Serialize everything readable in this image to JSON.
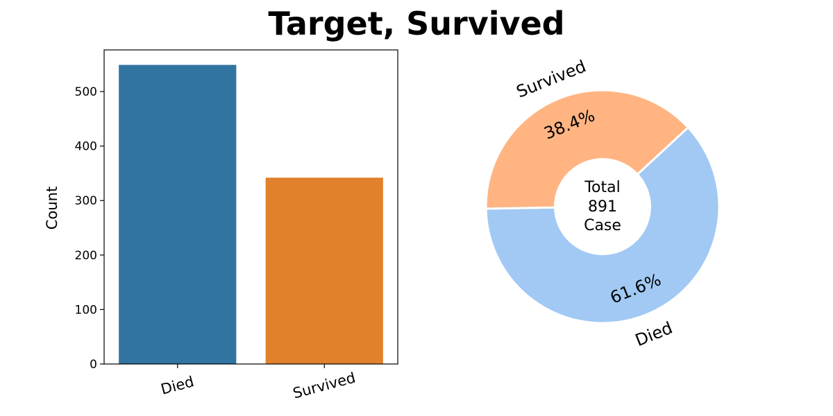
{
  "title": "Target, Survived",
  "chart_data": [
    {
      "type": "bar",
      "categories": [
        "Died",
        "Survived"
      ],
      "values": [
        549,
        342
      ],
      "colors": [
        "#3274a1",
        "#e1812c"
      ],
      "xlabel": "",
      "ylabel": "Count",
      "ylim": [
        0,
        576.45
      ],
      "yticks": [
        "0",
        "100",
        "200",
        "300",
        "400",
        "500"
      ],
      "grid": false
    },
    {
      "type": "pie",
      "labels": [
        "Died",
        "Survived"
      ],
      "values": [
        549,
        342
      ],
      "percent_labels": [
        "61.6%",
        "38.4%"
      ],
      "colors": [
        "#a1c9f4",
        "#ffb482"
      ],
      "center_text": [
        "Total",
        "891",
        "Case"
      ],
      "style": "donut"
    }
  ]
}
